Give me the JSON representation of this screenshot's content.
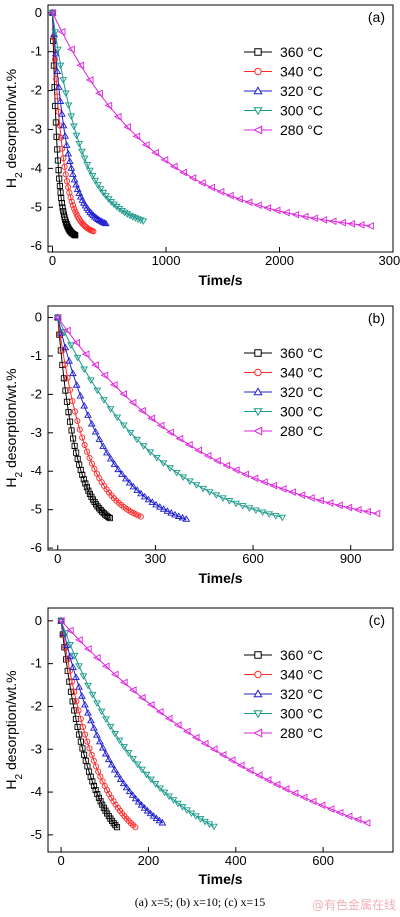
{
  "figure": {
    "caption": "(a) x=5; (b) x=10; (c) x=15",
    "watermark": "@有色金属在线"
  },
  "chart_data": [
    {
      "type": "line",
      "panel_label": "(a)",
      "xlabel": "Time/s",
      "ylabel": "H2 desorption/wt.%",
      "xlim": [
        -40,
        3000
      ],
      "ylim": [
        -6.15,
        0.2
      ],
      "xticks": [
        0,
        1000,
        2000,
        3000
      ],
      "yticks": [
        0,
        -1,
        -2,
        -3,
        -4,
        -5,
        -6
      ],
      "legend_position": "upper-right",
      "series": [
        {
          "name": "360 °C",
          "color": "#000000",
          "marker": "square",
          "x_end": 200,
          "y_end": -5.72,
          "tau": 0.22
        },
        {
          "name": "340 °C",
          "color": "#ff2a2a",
          "marker": "circle",
          "x_end": 360,
          "y_end": -5.62,
          "tau": 0.25
        },
        {
          "name": "320 °C",
          "color": "#1f1fd0",
          "marker": "triangle-up",
          "x_end": 470,
          "y_end": -5.42,
          "tau": 0.28
        },
        {
          "name": "300 °C",
          "color": "#1a9a8a",
          "marker": "triangle-down",
          "x_end": 800,
          "y_end": -5.35,
          "tau": 0.32
        },
        {
          "name": "280 °C",
          "color": "#dd22dd",
          "marker": "triangle-left",
          "x_end": 2800,
          "y_end": -5.48,
          "tau": 0.33
        }
      ]
    },
    {
      "type": "line",
      "panel_label": "(b)",
      "xlabel": "Time/s",
      "ylabel": "H2 desorption/wt.%",
      "xlim": [
        -30,
        1030
      ],
      "ylim": [
        -6.05,
        0.3
      ],
      "xticks": [
        0,
        300,
        600,
        900
      ],
      "yticks": [
        0,
        -1,
        -2,
        -3,
        -4,
        -5,
        -6
      ],
      "legend_position": "upper-right",
      "series": [
        {
          "name": "360 °C",
          "color": "#000000",
          "marker": "square",
          "x_end": 160,
          "y_end": -5.22,
          "tau": 0.35
        },
        {
          "name": "340 °C",
          "color": "#ff2a2a",
          "marker": "circle",
          "x_end": 255,
          "y_end": -5.18,
          "tau": 0.35
        },
        {
          "name": "320 °C",
          "color": "#1f1fd0",
          "marker": "triangle-up",
          "x_end": 395,
          "y_end": -5.25,
          "tau": 0.4
        },
        {
          "name": "300 °C",
          "color": "#1a9a8a",
          "marker": "triangle-down",
          "x_end": 690,
          "y_end": -5.2,
          "tau": 0.45
        },
        {
          "name": "280 °C",
          "color": "#dd22dd",
          "marker": "triangle-left",
          "x_end": 980,
          "y_end": -5.1,
          "tau": 0.5
        }
      ]
    },
    {
      "type": "line",
      "panel_label": "(c)",
      "xlabel": "Time/s",
      "ylabel": "H2 desorption/wt.%",
      "xlim": [
        -30,
        760
      ],
      "ylim": [
        -5.4,
        0.3
      ],
      "xticks": [
        0,
        200,
        400,
        600
      ],
      "yticks": [
        0,
        -1,
        -2,
        -3,
        -4,
        -5
      ],
      "legend_position": "upper-right",
      "series": [
        {
          "name": "360 °C",
          "color": "#000000",
          "marker": "square",
          "x_end": 128,
          "y_end": -4.82,
          "tau": 0.5
        },
        {
          "name": "340 °C",
          "color": "#ff2a2a",
          "marker": "circle",
          "x_end": 170,
          "y_end": -4.82,
          "tau": 0.5
        },
        {
          "name": "320 °C",
          "color": "#1f1fd0",
          "marker": "triangle-up",
          "x_end": 232,
          "y_end": -4.72,
          "tau": 0.55
        },
        {
          "name": "300 °C",
          "color": "#1a9a8a",
          "marker": "triangle-down",
          "x_end": 350,
          "y_end": -4.8,
          "tau": 0.6
        },
        {
          "name": "280 °C",
          "color": "#dd22dd",
          "marker": "triangle-left",
          "x_end": 700,
          "y_end": -4.72,
          "tau": 0.9
        }
      ]
    }
  ]
}
